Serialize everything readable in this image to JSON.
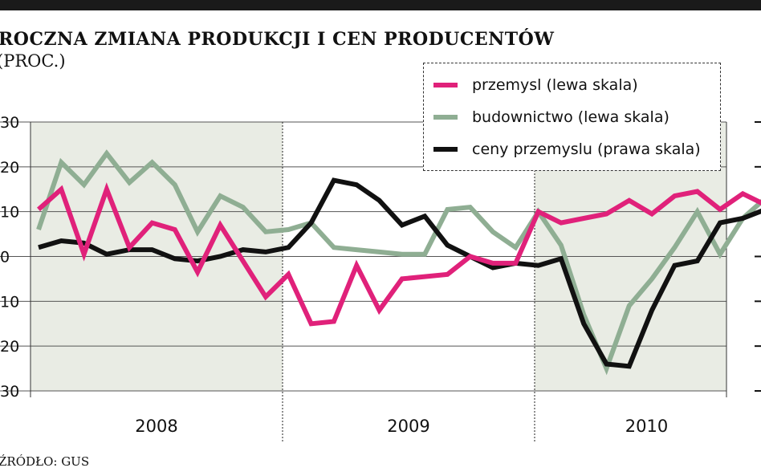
{
  "header": {
    "title": "ROCZNA ZMIANA PRODUKCJI I CEN PRODUCENTÓW",
    "subtitle": "(PROC.)"
  },
  "source": "ŹRÓDŁO: GUS",
  "colors": {
    "przemysl": "#e0217a",
    "budownictwo": "#8fae93",
    "ceny": "#111111",
    "shade": "#e9ece4"
  },
  "chart_data": {
    "type": "line",
    "x_labels": [
      "2008",
      "2009",
      "2010"
    ],
    "left_axis": {
      "ticks": [
        "30",
        "20",
        "10",
        "0",
        "10",
        "20",
        "30"
      ],
      "values": [
        30,
        20,
        10,
        0,
        -10,
        -20,
        -30
      ],
      "ylim": [
        -30,
        30
      ]
    },
    "right_axis": {
      "ticks_visible": [
        "",
        "",
        "",
        "",
        "",
        "-",
        "-"
      ]
    },
    "series": [
      {
        "name": "przemysl (lewa skala)",
        "axis": "left",
        "values": [
          10.5,
          15,
          0.5,
          15,
          2,
          7.5,
          6,
          -3.5,
          7,
          -1,
          -9,
          -4,
          -15,
          -14.5,
          -2,
          -12,
          -5,
          -4.5,
          -4,
          0,
          -1.5,
          -1.5,
          10,
          7.5,
          8.5,
          9.5,
          12.5,
          9.5,
          13.5,
          14.5,
          10.5,
          14,
          11.5
        ]
      },
      {
        "name": "budownictwo (lewa skala)",
        "axis": "left",
        "values": [
          6,
          21,
          16,
          23,
          16.5,
          21,
          16,
          5.5,
          13.5,
          11,
          5.5,
          6,
          7.5,
          2,
          1.5,
          1,
          0.5,
          0.5,
          10.5,
          11,
          5.5,
          2,
          10,
          2.5,
          -13,
          -25,
          -11,
          -5,
          2,
          10,
          0.5,
          8.5,
          13
        ]
      },
      {
        "name": "ceny przemyslu (prawa skala)",
        "axis": "right",
        "values": [
          2,
          3.5,
          3,
          0.5,
          1.5,
          1.5,
          -0.5,
          -1,
          0,
          1.5,
          1,
          2,
          7.5,
          17,
          16,
          12.5,
          7,
          9,
          2.5,
          0,
          -2.5,
          -1.5,
          -2,
          -0.5,
          -15,
          -24,
          -24.5,
          -12,
          -2,
          -1,
          7.5,
          8.5,
          10.5
        ]
      }
    ],
    "months_per_year": 12,
    "shaded_years": [
      "2008",
      "2010"
    ],
    "legend_placement": "top-right"
  }
}
